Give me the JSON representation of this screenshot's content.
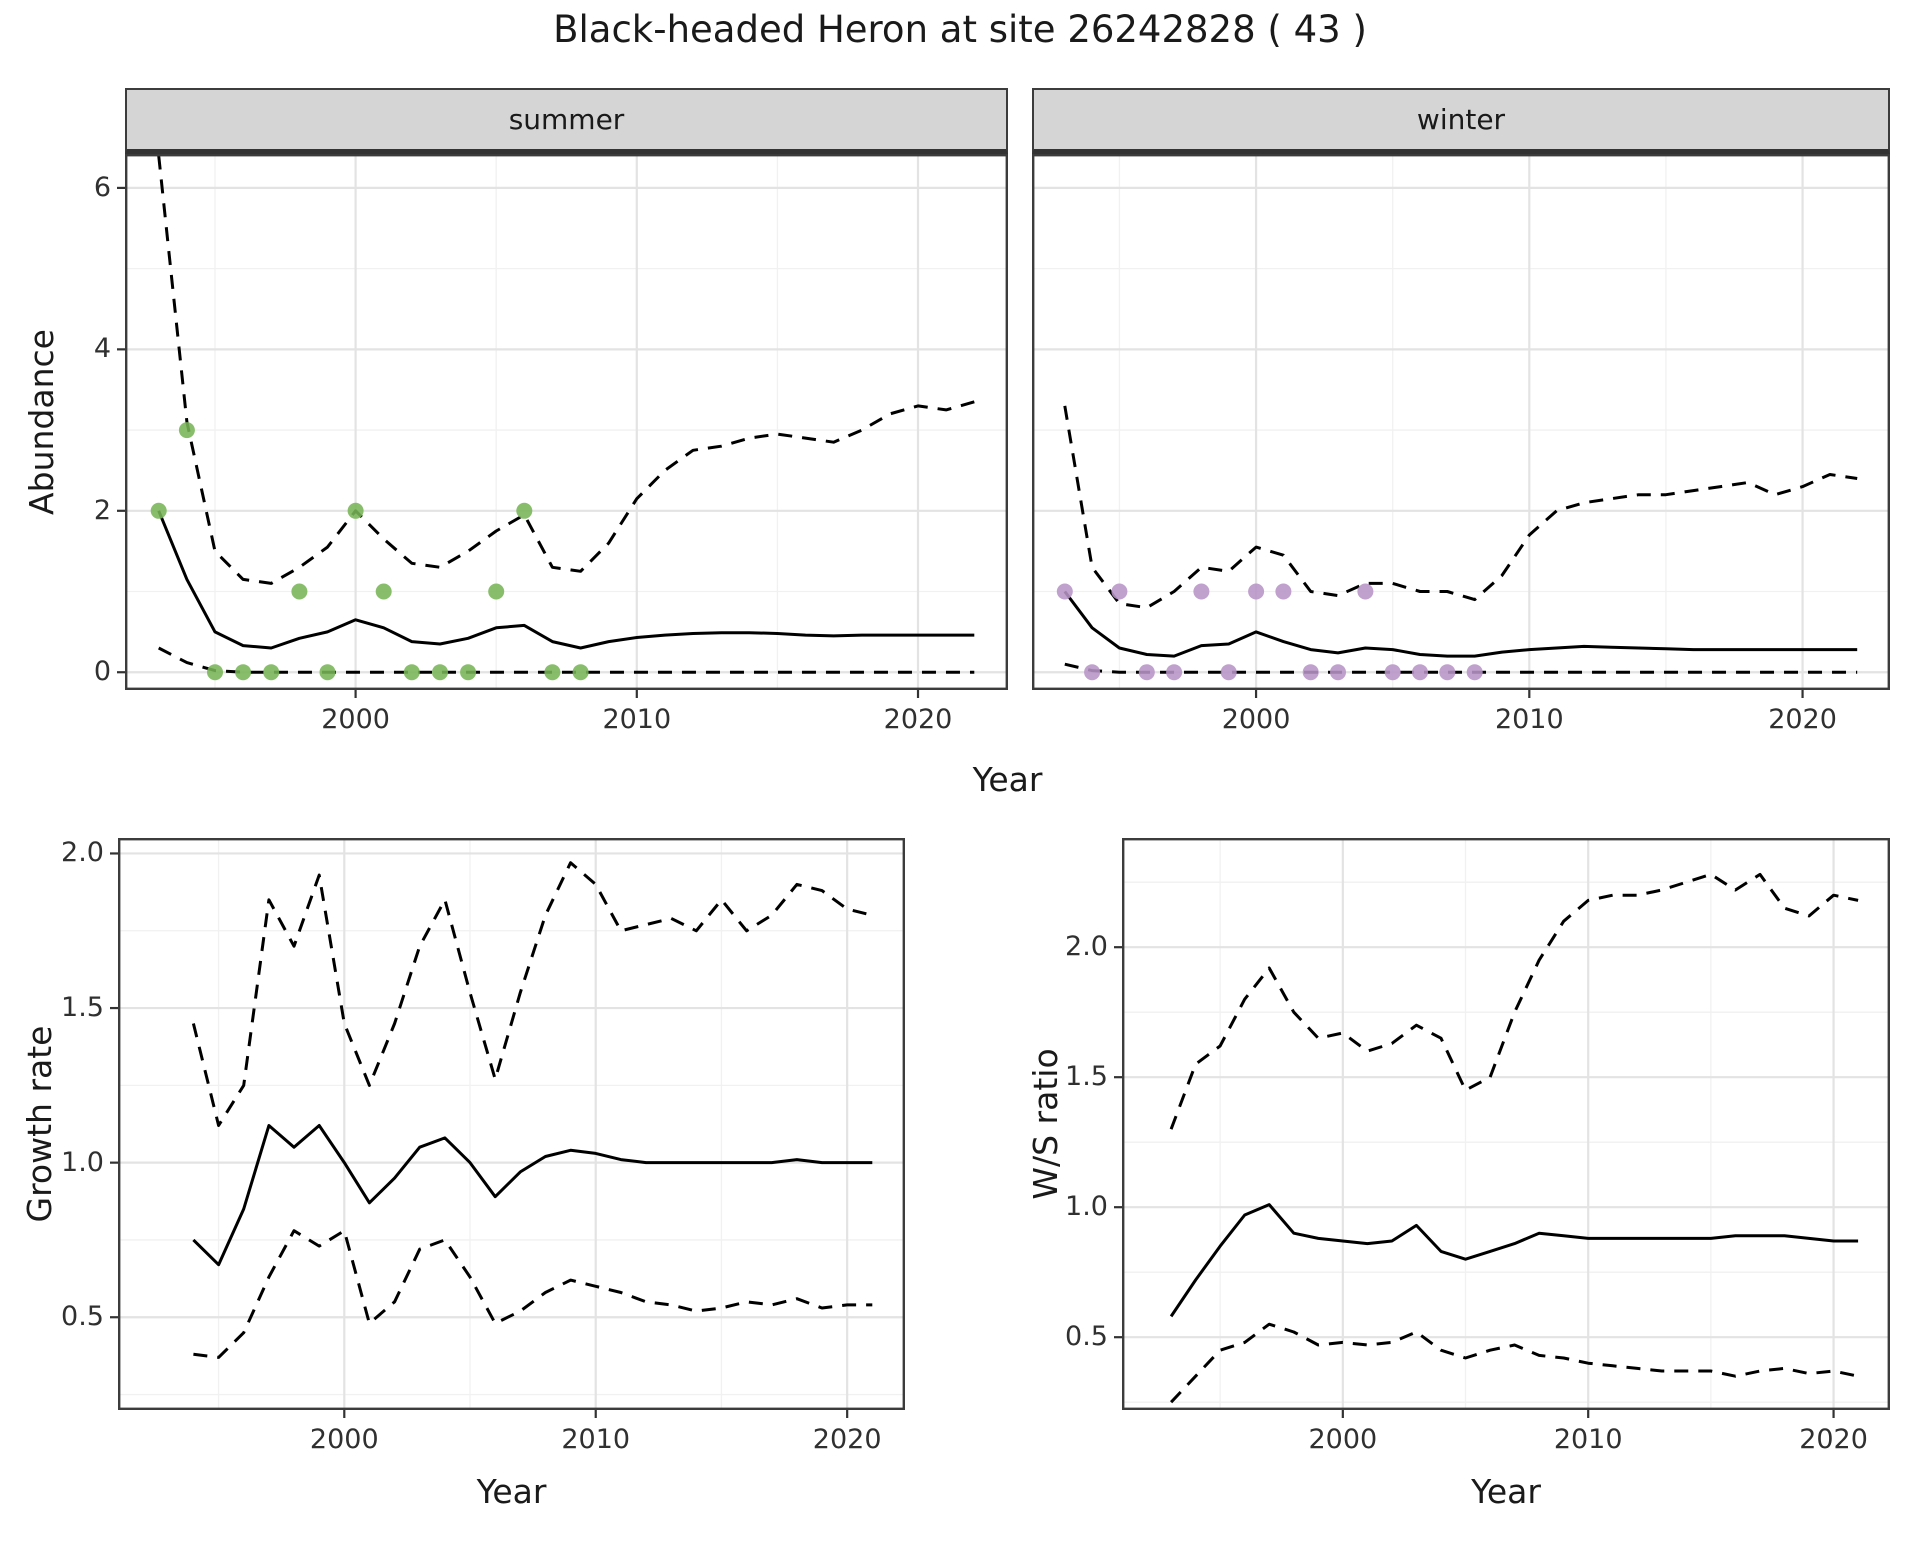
{
  "title": "Black-headed Heron at site 26242828 ( 43 )",
  "colors": {
    "panel_bg": "#ffffff",
    "grid_major": "#e3e3e3",
    "grid_minor": "#f1f1f1",
    "panel_border": "#3c3c3c",
    "strip_bg": "#d5d5d5",
    "line": "#000000",
    "summer_points": "#77b556",
    "winter_points": "#b793c6"
  },
  "chart_data": [
    {
      "id": "summer",
      "type": "line",
      "facet_label": "summer",
      "xlabel": "Year",
      "ylabel": "Abundance",
      "xlim": [
        1991.8,
        2023.2
      ],
      "ylim": [
        -0.22,
        6.42
      ],
      "xticks": [
        2000,
        2010,
        2020
      ],
      "xtick_labels": [
        "2000",
        "2010",
        "2020"
      ],
      "yticks": [
        0,
        2,
        4,
        6
      ],
      "ytick_labels": [
        "0",
        "2",
        "4",
        "6"
      ],
      "x": [
        1993,
        1994,
        1995,
        1996,
        1997,
        1998,
        1999,
        2000,
        2001,
        2002,
        2003,
        2004,
        2005,
        2006,
        2007,
        2008,
        2009,
        2010,
        2011,
        2012,
        2013,
        2014,
        2015,
        2016,
        2017,
        2018,
        2019,
        2020,
        2021,
        2022
      ],
      "series": [
        {
          "name": "upper-95ci",
          "style": "dashed",
          "values": [
            6.4,
            3.1,
            1.5,
            1.15,
            1.1,
            1.3,
            1.55,
            2.0,
            1.65,
            1.35,
            1.3,
            1.5,
            1.75,
            1.95,
            1.3,
            1.25,
            1.6,
            2.15,
            2.5,
            2.75,
            2.8,
            2.9,
            2.95,
            2.9,
            2.85,
            3.0,
            3.2,
            3.3,
            3.25,
            3.35
          ]
        },
        {
          "name": "median-fit",
          "style": "solid",
          "values": [
            2.0,
            1.15,
            0.5,
            0.33,
            0.3,
            0.42,
            0.5,
            0.65,
            0.55,
            0.38,
            0.35,
            0.42,
            0.55,
            0.58,
            0.38,
            0.3,
            0.38,
            0.43,
            0.46,
            0.48,
            0.49,
            0.49,
            0.48,
            0.46,
            0.45,
            0.46,
            0.46,
            0.46,
            0.46,
            0.46
          ]
        },
        {
          "name": "lower-95ci",
          "style": "dashed",
          "values": [
            0.3,
            0.12,
            0.02,
            0,
            0,
            0,
            0,
            0,
            0,
            0,
            0,
            0,
            0,
            0,
            0,
            0,
            0,
            0,
            0,
            0,
            0,
            0,
            0,
            0,
            0,
            0,
            0,
            0,
            0,
            0
          ]
        }
      ],
      "points": {
        "name": "observed-counts",
        "color": "#77b556",
        "x": [
          1993,
          1994,
          1995,
          1996,
          1997,
          1998,
          1999,
          2000,
          2001,
          2002,
          2003,
          2004,
          2005,
          2006,
          2007,
          2008
        ],
        "y": [
          2,
          3,
          0,
          0,
          0,
          1,
          0,
          2,
          1,
          0,
          0,
          0,
          1,
          2,
          0,
          0
        ]
      }
    },
    {
      "id": "winter",
      "type": "line",
      "facet_label": "winter",
      "xlabel": "Year",
      "ylabel": "Abundance",
      "xlim": [
        1991.8,
        2023.2
      ],
      "ylim": [
        -0.22,
        6.42
      ],
      "xticks": [
        2000,
        2010,
        2020
      ],
      "xtick_labels": [
        "2000",
        "2010",
        "2020"
      ],
      "yticks": [
        0,
        2,
        4,
        6
      ],
      "ytick_labels": [
        "0",
        "2",
        "4",
        "6"
      ],
      "x": [
        1993,
        1994,
        1995,
        1996,
        1997,
        1998,
        1999,
        2000,
        2001,
        2002,
        2003,
        2004,
        2005,
        2006,
        2007,
        2008,
        2009,
        2010,
        2011,
        2012,
        2013,
        2014,
        2015,
        2016,
        2017,
        2018,
        2019,
        2020,
        2021,
        2022
      ],
      "series": [
        {
          "name": "upper-95ci",
          "style": "dashed",
          "values": [
            3.3,
            1.3,
            0.85,
            0.8,
            1.0,
            1.3,
            1.25,
            1.55,
            1.45,
            1.0,
            0.95,
            1.1,
            1.1,
            1.0,
            1.0,
            0.9,
            1.2,
            1.7,
            2.0,
            2.1,
            2.15,
            2.2,
            2.2,
            2.25,
            2.3,
            2.35,
            2.2,
            2.3,
            2.45,
            2.4
          ]
        },
        {
          "name": "median-fit",
          "style": "solid",
          "values": [
            1.0,
            0.55,
            0.3,
            0.22,
            0.2,
            0.33,
            0.35,
            0.5,
            0.38,
            0.28,
            0.24,
            0.3,
            0.28,
            0.22,
            0.2,
            0.2,
            0.25,
            0.28,
            0.3,
            0.32,
            0.31,
            0.3,
            0.29,
            0.28,
            0.28,
            0.28,
            0.28,
            0.28,
            0.28,
            0.28
          ]
        },
        {
          "name": "lower-95ci",
          "style": "dashed",
          "values": [
            0.1,
            0.02,
            0,
            0,
            0,
            0,
            0,
            0,
            0,
            0,
            0,
            0,
            0,
            0,
            0,
            0,
            0,
            0,
            0,
            0,
            0,
            0,
            0,
            0,
            0,
            0,
            0,
            0,
            0,
            0
          ]
        }
      ],
      "points": {
        "name": "observed-counts",
        "color": "#b793c6",
        "x": [
          1993,
          1994,
          1995,
          1996,
          1997,
          1998,
          1999,
          2000,
          2001,
          2002,
          2003,
          2004,
          2005,
          2006,
          2007,
          2008
        ],
        "y": [
          1,
          0,
          1,
          0,
          0,
          1,
          0,
          1,
          1,
          0,
          0,
          1,
          0,
          0,
          0,
          0
        ]
      }
    },
    {
      "id": "growth",
      "type": "line",
      "xlabel": "Year",
      "ylabel": "Growth rate",
      "xlim": [
        1991.0,
        2022.3
      ],
      "ylim": [
        0.2,
        2.05
      ],
      "xticks": [
        2000,
        2010,
        2020
      ],
      "xtick_labels": [
        "2000",
        "2010",
        "2020"
      ],
      "yticks": [
        0.5,
        1.0,
        1.5,
        2.0
      ],
      "ytick_labels": [
        "0.5",
        "1.0",
        "1.5",
        "2.0"
      ],
      "x": [
        1994,
        1995,
        1996,
        1997,
        1998,
        1999,
        2000,
        2001,
        2002,
        2003,
        2004,
        2005,
        2006,
        2007,
        2008,
        2009,
        2010,
        2011,
        2012,
        2013,
        2014,
        2015,
        2016,
        2017,
        2018,
        2019,
        2020,
        2021
      ],
      "series": [
        {
          "name": "upper-95ci",
          "style": "dashed",
          "values": [
            1.45,
            1.12,
            1.25,
            1.85,
            1.7,
            1.93,
            1.45,
            1.25,
            1.45,
            1.7,
            1.85,
            1.55,
            1.27,
            1.55,
            1.8,
            1.97,
            1.9,
            1.75,
            1.77,
            1.79,
            1.75,
            1.85,
            1.75,
            1.8,
            1.9,
            1.88,
            1.82,
            1.8
          ]
        },
        {
          "name": "median-fit",
          "style": "solid",
          "values": [
            0.75,
            0.67,
            0.85,
            1.12,
            1.05,
            1.12,
            1.0,
            0.87,
            0.95,
            1.05,
            1.08,
            1.0,
            0.89,
            0.97,
            1.02,
            1.04,
            1.03,
            1.01,
            1.0,
            1.0,
            1.0,
            1.0,
            1.0,
            1.0,
            1.01,
            1.0,
            1.0,
            1.0
          ]
        },
        {
          "name": "lower-95ci",
          "style": "dashed",
          "values": [
            0.38,
            0.37,
            0.45,
            0.63,
            0.78,
            0.73,
            0.78,
            0.48,
            0.55,
            0.72,
            0.75,
            0.63,
            0.48,
            0.52,
            0.58,
            0.62,
            0.6,
            0.58,
            0.55,
            0.54,
            0.52,
            0.53,
            0.55,
            0.54,
            0.56,
            0.53,
            0.54,
            0.54
          ]
        }
      ]
    },
    {
      "id": "ws",
      "type": "line",
      "xlabel": "Year",
      "ylabel": "W/S ratio",
      "xlim": [
        1991.0,
        2022.3
      ],
      "ylim": [
        0.22,
        2.42
      ],
      "xticks": [
        2000,
        2010,
        2020
      ],
      "xtick_labels": [
        "2000",
        "2010",
        "2020"
      ],
      "yticks": [
        0.5,
        1.0,
        1.5,
        2.0
      ],
      "ytick_labels": [
        "0.5",
        "1.0",
        "1.5",
        "2.0"
      ],
      "x": [
        1993,
        1994,
        1995,
        1996,
        1997,
        1998,
        1999,
        2000,
        2001,
        2002,
        2003,
        2004,
        2005,
        2006,
        2007,
        2008,
        2009,
        2010,
        2011,
        2012,
        2013,
        2014,
        2015,
        2016,
        2017,
        2018,
        2019,
        2020,
        2021
      ],
      "series": [
        {
          "name": "upper-95ci",
          "style": "dashed",
          "values": [
            1.3,
            1.55,
            1.62,
            1.8,
            1.92,
            1.75,
            1.65,
            1.67,
            1.6,
            1.63,
            1.7,
            1.65,
            1.45,
            1.5,
            1.75,
            1.95,
            2.1,
            2.18,
            2.2,
            2.2,
            2.22,
            2.25,
            2.28,
            2.22,
            2.28,
            2.15,
            2.12,
            2.2,
            2.18
          ]
        },
        {
          "name": "median-fit",
          "style": "solid",
          "values": [
            0.58,
            0.72,
            0.85,
            0.97,
            1.01,
            0.9,
            0.88,
            0.87,
            0.86,
            0.87,
            0.93,
            0.83,
            0.8,
            0.83,
            0.86,
            0.9,
            0.89,
            0.88,
            0.88,
            0.88,
            0.88,
            0.88,
            0.88,
            0.89,
            0.89,
            0.89,
            0.88,
            0.87,
            0.87
          ]
        },
        {
          "name": "lower-95ci",
          "style": "dashed",
          "values": [
            0.25,
            0.35,
            0.45,
            0.48,
            0.55,
            0.52,
            0.47,
            0.48,
            0.47,
            0.48,
            0.52,
            0.45,
            0.42,
            0.45,
            0.47,
            0.43,
            0.42,
            0.4,
            0.39,
            0.38,
            0.37,
            0.37,
            0.37,
            0.35,
            0.37,
            0.38,
            0.36,
            0.37,
            0.35
          ]
        }
      ]
    }
  ]
}
